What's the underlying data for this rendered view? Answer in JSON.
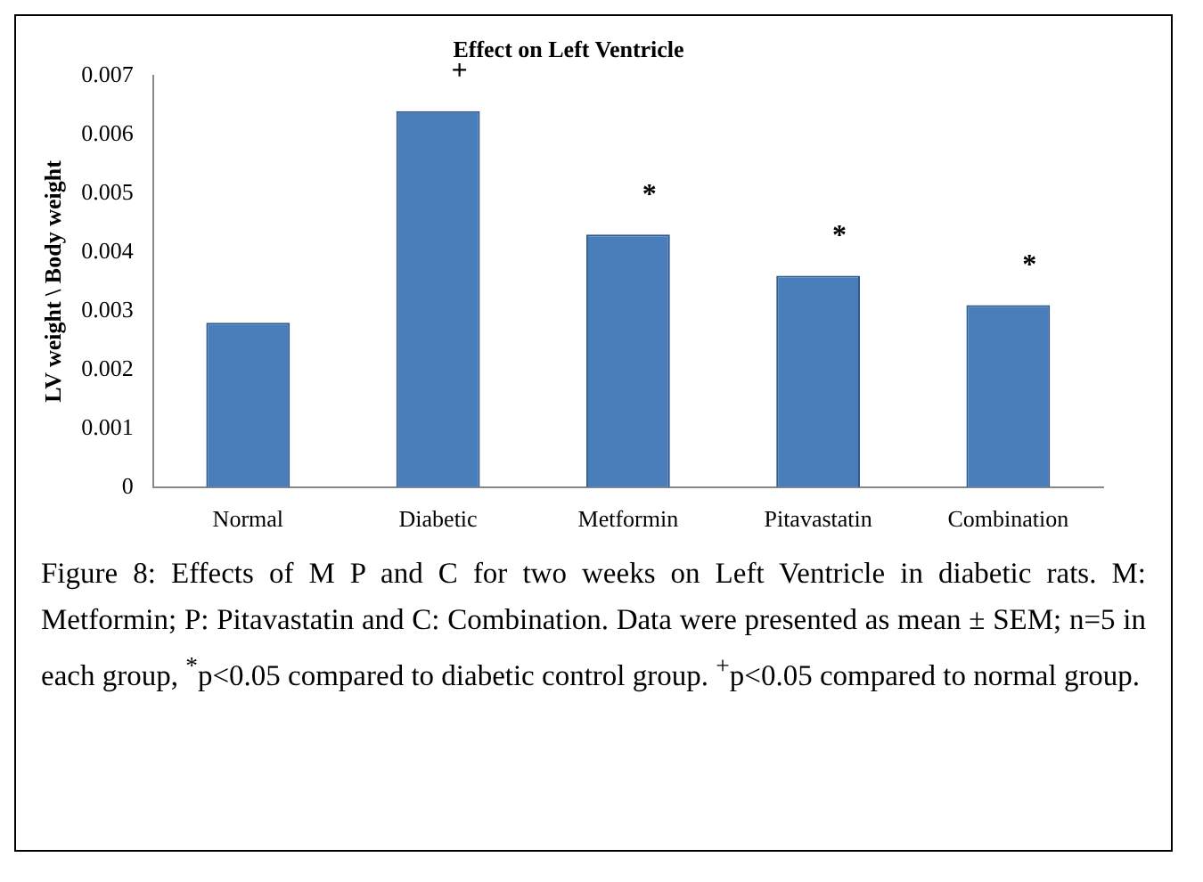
{
  "chart_data": {
    "type": "bar",
    "title": "Effect on Left Ventricle",
    "ylabel": "LV weight \\ Body weight",
    "categories": [
      "Normal",
      "Diabetic",
      "Metformin",
      "Pitavastatin",
      "Combination"
    ],
    "values": [
      0.0028,
      0.0064,
      0.0043,
      0.0036,
      0.0031
    ],
    "color": "#4a7ebb",
    "ylim": [
      0,
      0.007
    ],
    "yticks": [
      0,
      0.001,
      0.002,
      0.003,
      0.004,
      0.005,
      0.006,
      0.007
    ],
    "grid": false,
    "legend": false,
    "value_labels": [
      null,
      "+",
      "*",
      "*",
      "*"
    ],
    "annotations": [
      "Figure 8: Effects of M P and C for two weeks on Left Ventricle in diabetic rats. M: Metformin; P: Pitavastatin and C: Combination. Data were presented as mean ± SEM; n=5 in each group, $^{*}$p<0.05 compared to diabetic control group. $^{+}$p<0.05 compared to normal group."
    ]
  }
}
